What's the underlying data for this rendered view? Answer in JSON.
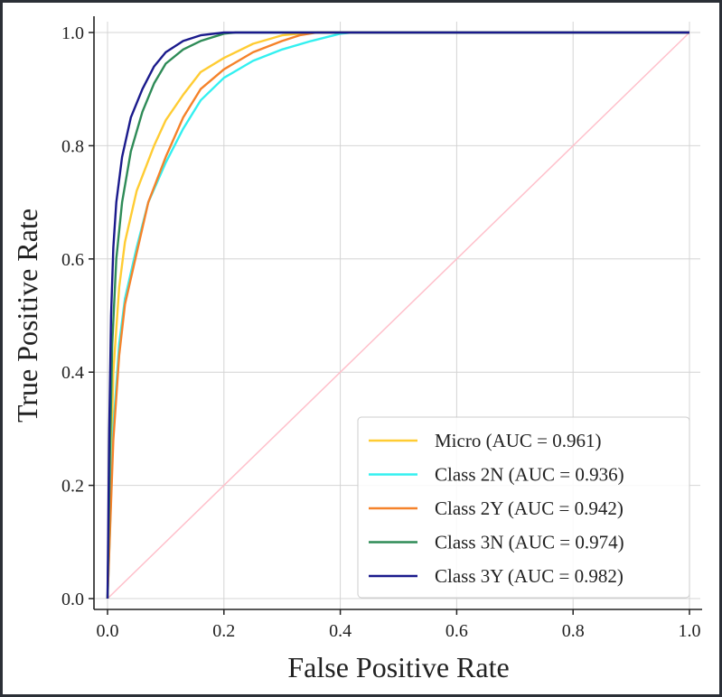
{
  "chart_data": {
    "type": "line",
    "xlabel": "False Positive Rate",
    "ylabel": "True Positive Rate",
    "xlim": [
      0.0,
      1.0
    ],
    "ylim": [
      0.0,
      1.0
    ],
    "x_ticks": [
      "0.0",
      "0.2",
      "0.4",
      "0.6",
      "0.8",
      "1.0"
    ],
    "y_ticks": [
      "0.0",
      "0.2",
      "0.4",
      "0.6",
      "0.8",
      "1.0"
    ],
    "grid": true,
    "legend_position": "lower-right",
    "diagonal": {
      "color": "#ffc0cb",
      "points": [
        [
          0,
          0
        ],
        [
          1,
          1
        ]
      ]
    },
    "series": [
      {
        "name": "Micro (AUC = 0.961)",
        "color": "#ffcc33",
        "points": [
          [
            0,
            0
          ],
          [
            0.005,
            0.2
          ],
          [
            0.01,
            0.4
          ],
          [
            0.02,
            0.55
          ],
          [
            0.03,
            0.63
          ],
          [
            0.05,
            0.72
          ],
          [
            0.08,
            0.8
          ],
          [
            0.1,
            0.845
          ],
          [
            0.13,
            0.89
          ],
          [
            0.16,
            0.93
          ],
          [
            0.2,
            0.955
          ],
          [
            0.25,
            0.98
          ],
          [
            0.3,
            0.995
          ],
          [
            0.35,
            1.0
          ],
          [
            1.0,
            1.0
          ]
        ]
      },
      {
        "name": "Class 2N (AUC = 0.936)",
        "color": "#33f0f0",
        "points": [
          [
            0,
            0
          ],
          [
            0.005,
            0.15
          ],
          [
            0.01,
            0.3
          ],
          [
            0.02,
            0.45
          ],
          [
            0.03,
            0.53
          ],
          [
            0.05,
            0.62
          ],
          [
            0.07,
            0.7
          ],
          [
            0.1,
            0.77
          ],
          [
            0.13,
            0.83
          ],
          [
            0.16,
            0.88
          ],
          [
            0.2,
            0.92
          ],
          [
            0.25,
            0.95
          ],
          [
            0.3,
            0.97
          ],
          [
            0.35,
            0.985
          ],
          [
            0.4,
            0.998
          ],
          [
            0.42,
            1.0
          ],
          [
            1.0,
            1.0
          ]
        ]
      },
      {
        "name": "Class 2Y (AUC = 0.942)",
        "color": "#f5822a",
        "points": [
          [
            0,
            0
          ],
          [
            0.005,
            0.14
          ],
          [
            0.01,
            0.28
          ],
          [
            0.02,
            0.43
          ],
          [
            0.03,
            0.52
          ],
          [
            0.05,
            0.61
          ],
          [
            0.07,
            0.7
          ],
          [
            0.1,
            0.78
          ],
          [
            0.13,
            0.85
          ],
          [
            0.16,
            0.9
          ],
          [
            0.2,
            0.935
          ],
          [
            0.25,
            0.965
          ],
          [
            0.3,
            0.985
          ],
          [
            0.33,
            0.995
          ],
          [
            0.36,
            1.0
          ],
          [
            1.0,
            1.0
          ]
        ]
      },
      {
        "name": "Class 3N (AUC = 0.974)",
        "color": "#2e8b57",
        "points": [
          [
            0,
            0
          ],
          [
            0.004,
            0.25
          ],
          [
            0.008,
            0.45
          ],
          [
            0.015,
            0.6
          ],
          [
            0.025,
            0.7
          ],
          [
            0.04,
            0.79
          ],
          [
            0.06,
            0.86
          ],
          [
            0.08,
            0.91
          ],
          [
            0.1,
            0.945
          ],
          [
            0.13,
            0.97
          ],
          [
            0.16,
            0.985
          ],
          [
            0.2,
            0.998
          ],
          [
            0.22,
            1.0
          ],
          [
            1.0,
            1.0
          ]
        ]
      },
      {
        "name": "Class 3Y (AUC = 0.982)",
        "color": "#1a1a8c",
        "points": [
          [
            0,
            0
          ],
          [
            0.003,
            0.3
          ],
          [
            0.006,
            0.5
          ],
          [
            0.01,
            0.62
          ],
          [
            0.015,
            0.7
          ],
          [
            0.025,
            0.78
          ],
          [
            0.04,
            0.85
          ],
          [
            0.06,
            0.9
          ],
          [
            0.08,
            0.94
          ],
          [
            0.1,
            0.965
          ],
          [
            0.13,
            0.985
          ],
          [
            0.16,
            0.995
          ],
          [
            0.2,
            1.0
          ],
          [
            1.0,
            1.0
          ]
        ]
      }
    ]
  }
}
